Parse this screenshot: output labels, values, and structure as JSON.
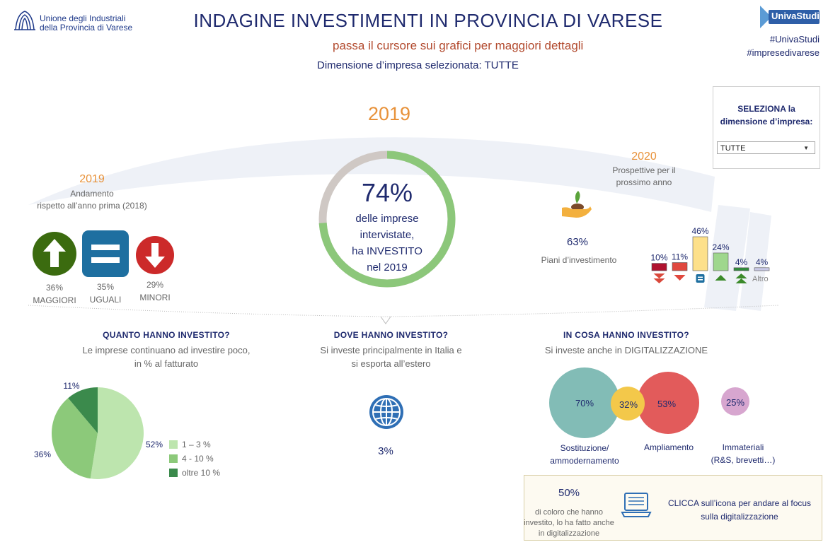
{
  "header": {
    "logo_line1": "Unione degli Industriali",
    "logo_line2": "della Provincia di Varese",
    "title": "INDAGINE INVESTIMENTI IN PROVINCIA DI VARESE",
    "hint": "passa il cursore sui grafici per maggiori dettagli",
    "selected_dimension": "Dimensione d’impresa selezionata: TUTTE",
    "brand": "UnivaStudi",
    "hashtag1": "#UnivaStudi",
    "hashtag2": "#impresedivarese"
  },
  "selector": {
    "title_line1": "SELEZIONA la",
    "title_line2": "dimensione d’impresa:",
    "value": "TUTTE"
  },
  "center": {
    "year": "2019",
    "pct": "74%",
    "pct_value": 74,
    "line1": "delle imprese",
    "line2": "intervistate,",
    "line3": "ha INVESTITO",
    "line4": "nel 2019",
    "colors": {
      "invested": "#8cc77a",
      "rest": "#cfc8c4"
    }
  },
  "trend": {
    "year": "2019",
    "line1": "Andamento",
    "line2": "rispetto all’anno prima (2018)",
    "items": [
      {
        "pct": "36%",
        "label": "MAGGIORI",
        "icon": "arrow-up-icon",
        "color": "#3b6b0f"
      },
      {
        "pct": "35%",
        "label": "UGUALI",
        "icon": "equals-icon",
        "color": "#1e6fa0"
      },
      {
        "pct": "29%",
        "label": "MINORI",
        "icon": "arrow-down-icon",
        "color": "#cc2a2a"
      }
    ]
  },
  "outlook": {
    "year": "2020",
    "line1": "Prospettive per il",
    "line2": "prossimo anno",
    "plan_pct": "63%",
    "plan_label": "Piani d’investimento",
    "bars": [
      {
        "pct": "10%",
        "value": 10,
        "color": "#b0122f",
        "icon": "double-arrow-down-icon",
        "icon_color": "#d9483b"
      },
      {
        "pct": "11%",
        "value": 11,
        "color": "#e0483e",
        "icon": "arrow-down-icon",
        "icon_color": "#e0483e"
      },
      {
        "pct": "46%",
        "value": 46,
        "color": "#fde08a",
        "icon": "equals-icon",
        "icon_color": "#1e6fa0"
      },
      {
        "pct": "24%",
        "value": 24,
        "color": "#9fd78d",
        "icon": "arrow-up-icon",
        "icon_color": "#3b8a2a"
      },
      {
        "pct": "4%",
        "value": 4,
        "color": "#2f8a3a",
        "icon": "double-arrow-up-icon",
        "icon_color": "#3b8a2a"
      },
      {
        "pct": "4%",
        "value": 4,
        "color": "#c8c8e6",
        "icon": "",
        "icon_color": ""
      }
    ],
    "altro_label": "Altro"
  },
  "quanto": {
    "title": "QUANTO HANNO INVESTITO?",
    "line1": "Le imprese continuano ad investire poco,",
    "line2": "in % al fatturato"
  },
  "chart_data": {
    "type": "pie",
    "categories": [
      "1 – 3 %",
      "4 - 10 %",
      "oltre 10 %"
    ],
    "values": [
      52,
      36,
      11
    ],
    "labels": [
      "52%",
      "36%",
      "11%"
    ],
    "colors": [
      "#bde5ae",
      "#8cc97a",
      "#3b8a4c"
    ],
    "legend_position": "right"
  },
  "dove": {
    "title": "DOVE HANNO INVESTITO?",
    "line1": "Si investe principalmente in Italia e",
    "line2": "si esporta all’estero",
    "pct": "3%"
  },
  "cosa": {
    "title": "IN COSA HANNO INVESTITO?",
    "subtitle": "Si investe anche in DIGITALIZZAZIONE",
    "bubbles": [
      {
        "pct": "70%",
        "color": "#82bcb6"
      },
      {
        "pct": "32%",
        "color": "#f3c84a"
      },
      {
        "pct": "53%",
        "color": "#e25b5b"
      },
      {
        "pct": "25%",
        "color": "#d7a6cf"
      }
    ],
    "label_sost1": "Sostituzione/",
    "label_sost2": "ammodernamento",
    "label_ampl": "Ampliamento",
    "label_imm1": "Immateriali",
    "label_imm2": "(R&S, brevetti…)"
  },
  "digital": {
    "pct": "50%",
    "line1": "di coloro che hanno",
    "line2": "investito, lo ha fatto anche",
    "line3": "in digitalizzazione",
    "cta1": "CLICCA sull’icona per andare al focus",
    "cta2": "sulla digitalizzazione"
  }
}
